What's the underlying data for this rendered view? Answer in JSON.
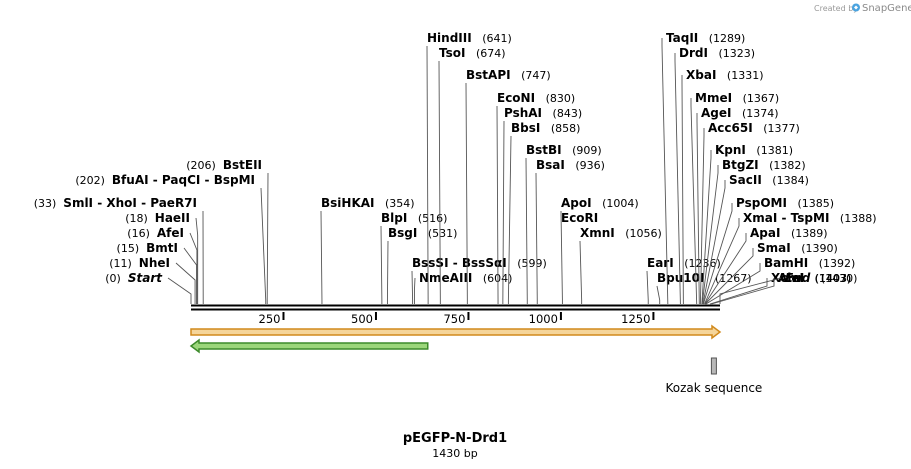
{
  "map": {
    "name": "pEGFP-N-Drd1",
    "length_label": "1430 bp",
    "length": 1430,
    "credit": {
      "prefix": "Created by",
      "brand": "SnapGene"
    },
    "ticks": [
      {
        "pos": 250,
        "label": "250"
      },
      {
        "pos": 500,
        "label": "500"
      },
      {
        "pos": 750,
        "label": "750"
      },
      {
        "pos": 1000,
        "label": "1000"
      },
      {
        "pos": 1250,
        "label": "1250"
      }
    ],
    "features": [
      {
        "name": "",
        "type": "arrow",
        "direction": "forward",
        "start": 0,
        "end": 1430,
        "fill": "#f5d59a",
        "stroke": "#d18a1c",
        "row": 0
      },
      {
        "name": "",
        "type": "arrow",
        "direction": "reverse",
        "start": 0,
        "end": 640,
        "fill": "#9bd67a",
        "stroke": "#3c8a2a",
        "row": 1
      },
      {
        "name": "Kozak sequence",
        "type": "box",
        "start": 1409,
        "end": 1418,
        "fill": "#b8b8b8",
        "stroke": "#555555",
        "row": 2
      }
    ],
    "enzymes": [
      {
        "name": "Start",
        "pos": 0,
        "pos_label": "(0)",
        "term": true
      },
      {
        "name": "NheI",
        "pos": 11,
        "pos_label": "(11)"
      },
      {
        "name": "BmtI",
        "pos": 15,
        "pos_label": "(15)"
      },
      {
        "name": "AfeI",
        "pos": 16,
        "pos_label": "(16)"
      },
      {
        "name": "HaeII",
        "pos": 18,
        "pos_label": "(18)"
      },
      {
        "group": [
          "SmlI",
          "XhoI",
          "PaeR7I"
        ],
        "pos": 33,
        "pos_label": "(33)"
      },
      {
        "group": [
          "BfuAI",
          "PaqCI",
          "BspMI"
        ],
        "pos": 202,
        "pos_label": "(202)"
      },
      {
        "name": "BstEII",
        "pos": 206,
        "pos_label": "(206)"
      },
      {
        "name": "BsiHKAI",
        "pos": 354,
        "pos_label": "(354)"
      },
      {
        "name": "BlpI",
        "pos": 516,
        "pos_label": "(516)"
      },
      {
        "name": "BsgI",
        "pos": 531,
        "pos_label": "(531)"
      },
      {
        "group": [
          "BssSI",
          "BssSαI"
        ],
        "pos": 599,
        "pos_label": "(599)"
      },
      {
        "name": "NmeAIII",
        "pos": 604,
        "pos_label": "(604)"
      },
      {
        "name": "HindIII",
        "pos": 641,
        "pos_label": "(641)"
      },
      {
        "name": "TsoI",
        "pos": 674,
        "pos_label": "(674)"
      },
      {
        "name": "BstAPI",
        "pos": 747,
        "pos_label": "(747)"
      },
      {
        "name": "EcoNI",
        "pos": 830,
        "pos_label": "(830)"
      },
      {
        "name": "PshAI",
        "pos": 843,
        "pos_label": "(843)"
      },
      {
        "name": "BbsI",
        "pos": 858,
        "pos_label": "(858)"
      },
      {
        "name": "BstBI",
        "pos": 909,
        "pos_label": "(909)"
      },
      {
        "name": "BsaI",
        "pos": 936,
        "pos_label": "(936)"
      },
      {
        "name": "ApoI",
        "pos": 1004,
        "pos_label": "(1004)"
      },
      {
        "name": "EcoRI",
        "pos": 1004,
        "pos_label": ""
      },
      {
        "name": "XmnI",
        "pos": 1056,
        "pos_label": "(1056)"
      },
      {
        "name": "EarI",
        "pos": 1236,
        "pos_label": "(1236)"
      },
      {
        "name": "Bpu10I",
        "pos": 1267,
        "pos_label": "(1267)"
      },
      {
        "name": "TaqII",
        "pos": 1289,
        "pos_label": "(1289)"
      },
      {
        "name": "DrdI",
        "pos": 1323,
        "pos_label": "(1323)"
      },
      {
        "name": "XbaI",
        "pos": 1331,
        "pos_label": "(1331)"
      },
      {
        "name": "MmeI",
        "pos": 1367,
        "pos_label": "(1367)"
      },
      {
        "name": "AgeI",
        "pos": 1374,
        "pos_label": "(1374)"
      },
      {
        "name": "Acc65I",
        "pos": 1377,
        "pos_label": "(1377)"
      },
      {
        "name": "KpnI",
        "pos": 1381,
        "pos_label": "(1381)"
      },
      {
        "name": "BtgZI",
        "pos": 1382,
        "pos_label": "(1382)"
      },
      {
        "name": "SacII",
        "pos": 1384,
        "pos_label": "(1384)"
      },
      {
        "name": "PspOMI",
        "pos": 1385,
        "pos_label": "(1385)"
      },
      {
        "group": [
          "XmaI",
          "TspMI"
        ],
        "pos": 1388,
        "pos_label": "(1388)"
      },
      {
        "name": "ApaI",
        "pos": 1389,
        "pos_label": "(1389)"
      },
      {
        "name": "SmaI",
        "pos": 1390,
        "pos_label": "(1390)"
      },
      {
        "name": "BamHI",
        "pos": 1392,
        "pos_label": "(1392)"
      },
      {
        "name": "XcmI",
        "pos": 1403,
        "pos_label": "(1403)"
      },
      {
        "name": "AleI",
        "pos": 1407,
        "pos_label": "(1407)"
      },
      {
        "name": "End",
        "pos": 1430,
        "pos_label": "(1430)",
        "term": true
      }
    ]
  }
}
